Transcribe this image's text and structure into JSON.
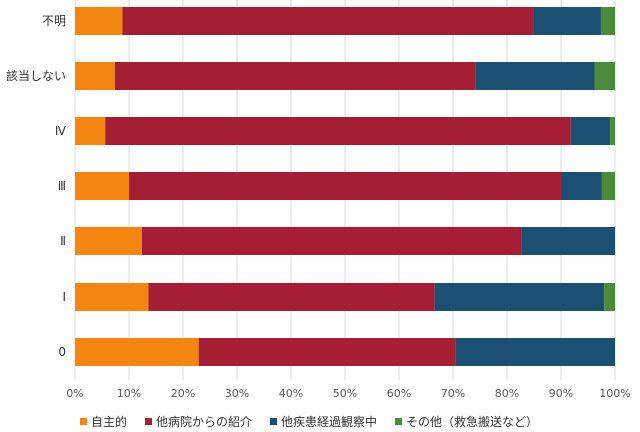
{
  "chart_data": {
    "type": "bar",
    "orientation": "horizontal",
    "stacked": "percent",
    "categories": [
      "不明",
      "該当しない",
      "Ⅳ",
      "Ⅲ",
      "Ⅱ",
      "Ⅰ",
      "0"
    ],
    "series": [
      {
        "name": "自主的",
        "color": "#F58511",
        "values": [
          8.8,
          7.4,
          5.6,
          10.0,
          12.4,
          13.6,
          22.9
        ]
      },
      {
        "name": "他病院からの紹介",
        "color": "#A61E34",
        "values": [
          76.1,
          66.8,
          86.2,
          80.0,
          70.3,
          53.0,
          47.5
        ]
      },
      {
        "name": "他疾患経過観察中",
        "color": "#1C5072",
        "values": [
          12.5,
          22.0,
          7.3,
          7.5,
          17.3,
          31.4,
          29.6
        ]
      },
      {
        "name": "その他（救急搬送など）",
        "color": "#4B8B3B",
        "values": [
          2.6,
          3.8,
          0.9,
          2.5,
          0.0,
          2.0,
          0.0
        ]
      }
    ],
    "xlim": [
      0,
      100
    ],
    "xticks": [
      "0%",
      "10%",
      "20%",
      "30%",
      "40%",
      "50%",
      "60%",
      "70%",
      "80%",
      "90%",
      "100%"
    ],
    "grid": true,
    "legend": "bottom"
  }
}
